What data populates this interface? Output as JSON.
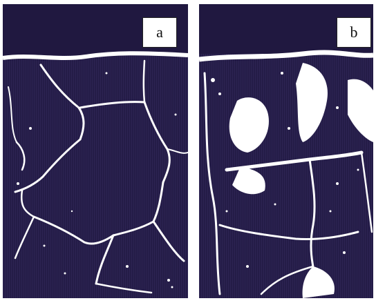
{
  "figure": {
    "panels": [
      {
        "label": "a"
      },
      {
        "label": "b"
      }
    ],
    "colors": {
      "matrix": "#241c47",
      "boundary": "#ffffff",
      "background": "#ffffff"
    }
  }
}
